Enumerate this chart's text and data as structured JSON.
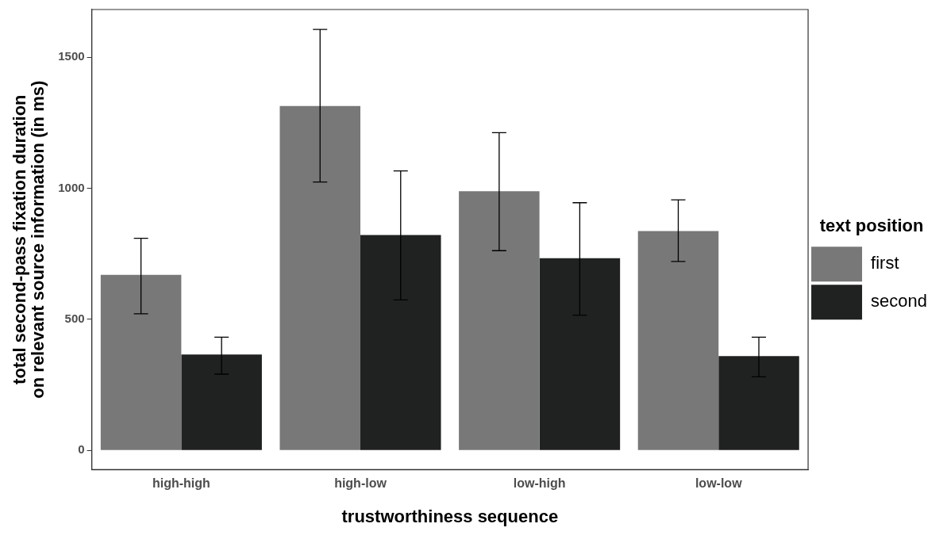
{
  "chart_data": {
    "type": "bar",
    "xlabel": "trustworthiness sequence",
    "ylabel": "total second-pass fixation duration\non relevant source information (in ms)",
    "legend_title": "text position",
    "categories": [
      "high-high",
      "high-low",
      "low-high",
      "low-low"
    ],
    "series": [
      {
        "name": "first",
        "color": "#787878",
        "values": [
          670,
          1314,
          989,
          837
        ],
        "errors": [
          [
            521,
            809
          ],
          [
            1024,
            1606
          ],
          [
            762,
            1212
          ],
          [
            721,
            956
          ]
        ]
      },
      {
        "name": "second",
        "color": "#202221",
        "values": [
          366,
          822,
          733,
          360
        ],
        "errors": [
          [
            291,
            432
          ],
          [
            574,
            1066
          ],
          [
            516,
            945
          ],
          [
            281,
            432
          ]
        ]
      }
    ],
    "ylim": [
      -73,
      1682
    ],
    "yticks": [
      0,
      500,
      1000,
      1500
    ],
    "grid": false,
    "legend": "right"
  }
}
